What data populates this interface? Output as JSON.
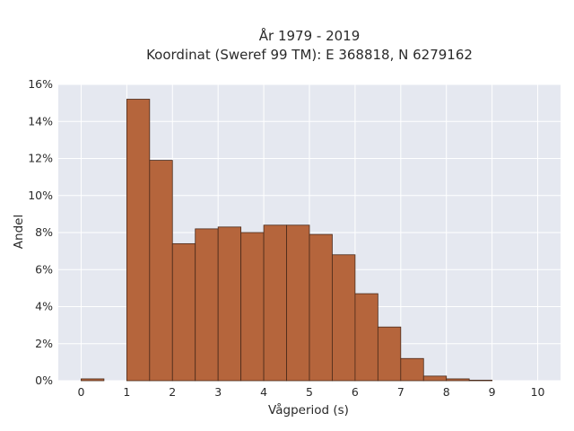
{
  "chart_data": {
    "type": "bar",
    "title_line1": "År 1979 - 2019",
    "title_line2": "Koordinat (Sweref 99 TM): E 368818, N 6279162",
    "xlabel": "Vågperiod (s)",
    "ylabel": "Andel",
    "xlim": [
      -0.5,
      10.5
    ],
    "ylim": [
      0,
      0.16
    ],
    "x_ticks": [
      0,
      1,
      2,
      3,
      4,
      5,
      6,
      7,
      8,
      9,
      10
    ],
    "y_ticks": [
      0,
      0.02,
      0.04,
      0.06,
      0.08,
      0.1,
      0.12,
      0.14,
      0.16
    ],
    "y_tick_labels": [
      "0%",
      "2%",
      "4%",
      "6%",
      "8%",
      "10%",
      "12%",
      "14%",
      "16%"
    ],
    "bin_width": 0.5,
    "bins": [
      {
        "x0": 0.0,
        "value": 0.001
      },
      {
        "x0": 1.0,
        "value": 0.152
      },
      {
        "x0": 1.5,
        "value": 0.119
      },
      {
        "x0": 2.0,
        "value": 0.074
      },
      {
        "x0": 2.5,
        "value": 0.082
      },
      {
        "x0": 3.0,
        "value": 0.083
      },
      {
        "x0": 3.5,
        "value": 0.08
      },
      {
        "x0": 4.0,
        "value": 0.084
      },
      {
        "x0": 4.5,
        "value": 0.084
      },
      {
        "x0": 5.0,
        "value": 0.079
      },
      {
        "x0": 5.5,
        "value": 0.068
      },
      {
        "x0": 6.0,
        "value": 0.047
      },
      {
        "x0": 6.5,
        "value": 0.029
      },
      {
        "x0": 7.0,
        "value": 0.012
      },
      {
        "x0": 7.5,
        "value": 0.0025
      },
      {
        "x0": 8.0,
        "value": 0.001
      },
      {
        "x0": 8.5,
        "value": 0.0003
      }
    ],
    "grid": true,
    "legend": "none",
    "colors": {
      "bar_fill": "#b5653c",
      "bar_edge": "#4a2a1a",
      "plot_background": "#e5e8f0",
      "grid": "#ffffff"
    }
  }
}
